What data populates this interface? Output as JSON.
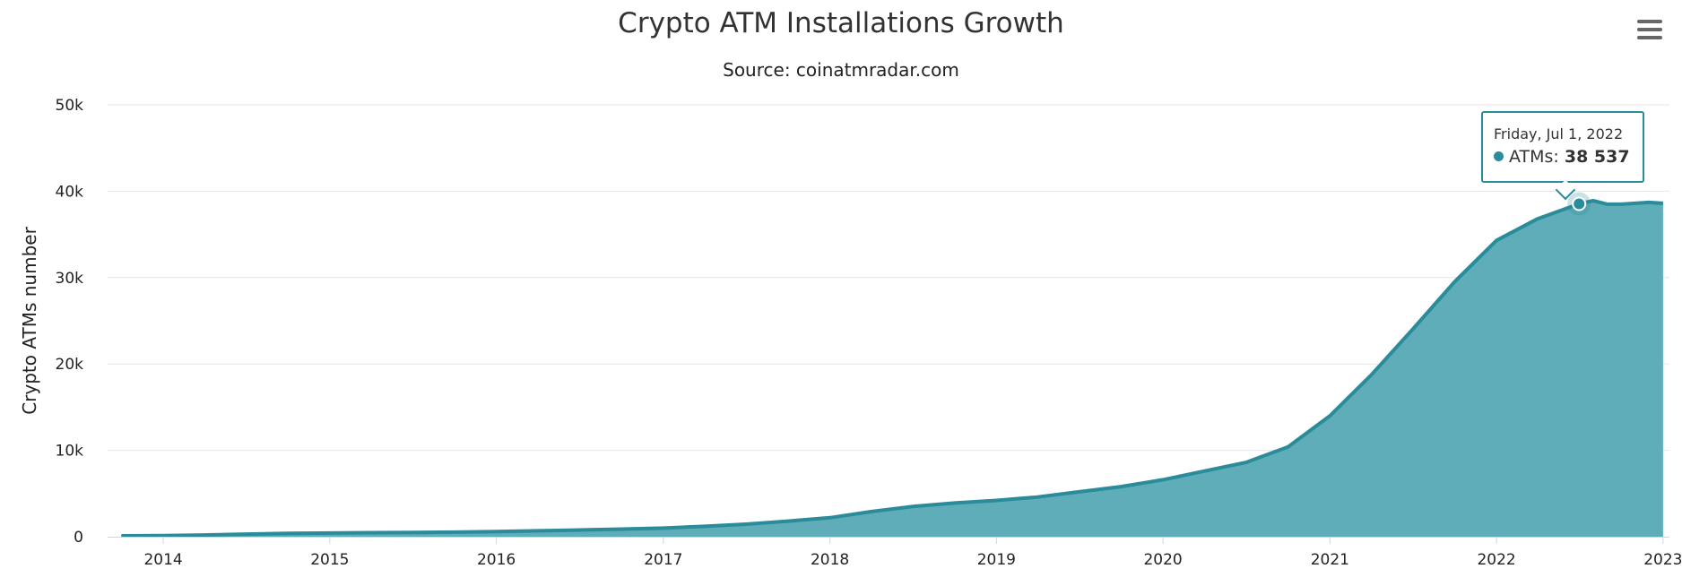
{
  "chart_data": {
    "type": "area",
    "title": "Crypto ATM Installations Growth",
    "subtitle": "Source: coinatmradar.com",
    "xlabel": "",
    "ylabel": "Crypto ATMs number",
    "ylim": [
      0,
      50000
    ],
    "y_ticks": [
      "0",
      "10k",
      "20k",
      "30k",
      "40k",
      "50k"
    ],
    "x_ticks": [
      "2014",
      "2015",
      "2016",
      "2017",
      "2018",
      "2019",
      "2020",
      "2021",
      "2022",
      "2023"
    ],
    "grid": true,
    "legend": "none",
    "color": "#2a8c9a",
    "fill_color": "#5eadb9",
    "series": [
      {
        "name": "ATMs",
        "points": [
          [
            "2013-10-01",
            100
          ],
          [
            "2014-01-01",
            120
          ],
          [
            "2014-04-01",
            200
          ],
          [
            "2014-07-01",
            300
          ],
          [
            "2014-10-01",
            380
          ],
          [
            "2015-01-01",
            430
          ],
          [
            "2015-04-01",
            470
          ],
          [
            "2015-07-01",
            500
          ],
          [
            "2015-10-01",
            530
          ],
          [
            "2016-01-01",
            600
          ],
          [
            "2016-04-01",
            680
          ],
          [
            "2016-07-01",
            780
          ],
          [
            "2016-10-01",
            880
          ],
          [
            "2017-01-01",
            1000
          ],
          [
            "2017-04-01",
            1200
          ],
          [
            "2017-07-01",
            1450
          ],
          [
            "2017-10-01",
            1800
          ],
          [
            "2018-01-01",
            2200
          ],
          [
            "2018-04-01",
            2900
          ],
          [
            "2018-07-01",
            3500
          ],
          [
            "2018-10-01",
            3900
          ],
          [
            "2019-01-01",
            4200
          ],
          [
            "2019-04-01",
            4600
          ],
          [
            "2019-07-01",
            5200
          ],
          [
            "2019-10-01",
            5800
          ],
          [
            "2020-01-01",
            6600
          ],
          [
            "2020-04-01",
            7600
          ],
          [
            "2020-07-01",
            8600
          ],
          [
            "2020-10-01",
            10400
          ],
          [
            "2021-01-01",
            14000
          ],
          [
            "2021-04-01",
            18700
          ],
          [
            "2021-07-01",
            24000
          ],
          [
            "2021-10-01",
            29500
          ],
          [
            "2022-01-01",
            34300
          ],
          [
            "2022-04-01",
            36800
          ],
          [
            "2022-07-01",
            38537
          ],
          [
            "2022-08-01",
            38900
          ],
          [
            "2022-09-01",
            38500
          ],
          [
            "2022-10-01",
            38500
          ],
          [
            "2022-11-01",
            38600
          ],
          [
            "2022-12-01",
            38700
          ],
          [
            "2023-01-01",
            38600
          ]
        ]
      }
    ]
  },
  "tooltip": {
    "date": "Friday, Jul 1, 2022",
    "series_label": "ATMs:",
    "value": "38 537",
    "point": [
      "2022-07-01",
      38537
    ]
  },
  "menu_icon": "hamburger-menu-icon"
}
